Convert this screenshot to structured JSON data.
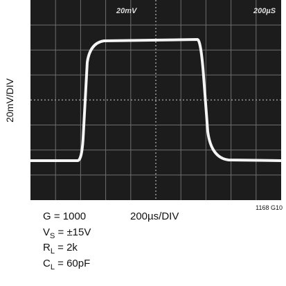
{
  "screen": {
    "top_left_label": "20mV",
    "top_right_label": "200µS"
  },
  "y_axis_label": "20mV/DIV",
  "x_axis_label": "200µs/DIV",
  "figure_id": "1168 G10",
  "conditions": [
    {
      "text": "G = 1000"
    },
    {
      "symbol": "V",
      "subscript": "S",
      "value": " = ±15V"
    },
    {
      "symbol": "R",
      "subscript": "L",
      "value": " = 2k"
    },
    {
      "symbol": "C",
      "subscript": "L",
      "value": " = 60pF"
    }
  ]
}
